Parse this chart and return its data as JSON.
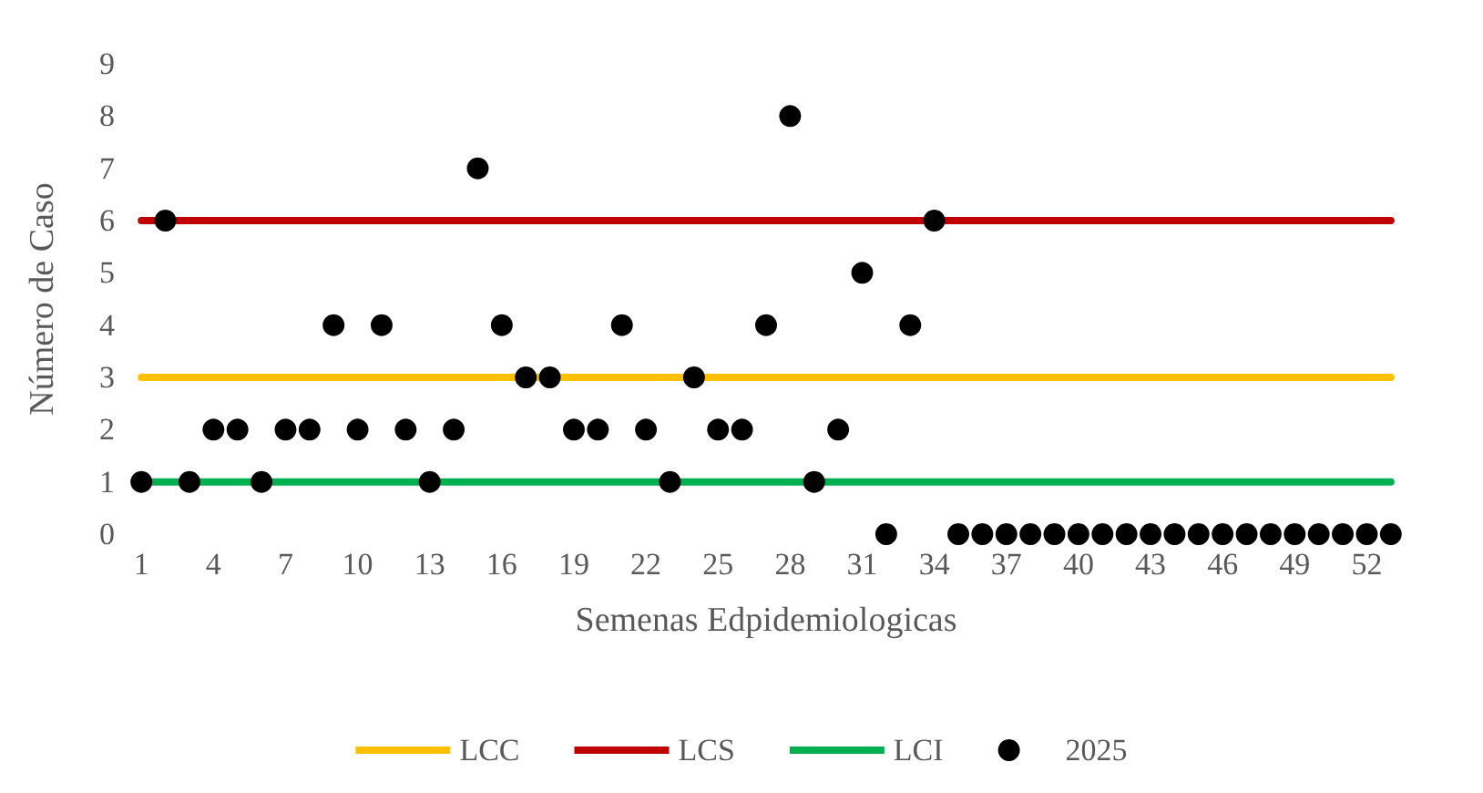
{
  "chart_data": {
    "type": "scatter",
    "xlabel": "Semenas Edpidemiologicas",
    "ylabel": "Número de Caso",
    "categories": [
      "1",
      null,
      null,
      "4",
      null,
      null,
      "7",
      null,
      null,
      "10",
      null,
      null,
      "13",
      null,
      null,
      "16",
      null,
      null,
      "19",
      null,
      null,
      "22",
      null,
      null,
      "25",
      null,
      null,
      "28",
      null,
      null,
      "31",
      null,
      null,
      "34",
      null,
      null,
      "37",
      null,
      null,
      "40",
      null,
      null,
      "43",
      null,
      null,
      "46",
      null,
      null,
      "49",
      null,
      null,
      "52",
      null
    ],
    "series": [
      {
        "name": "LCC",
        "type": "line",
        "marker": "none",
        "color": "#ffc000",
        "values": [
          3,
          3,
          3,
          3,
          3,
          3,
          3,
          3,
          3,
          3,
          3,
          3,
          3,
          3,
          3,
          3,
          3,
          3,
          3,
          3,
          3,
          3,
          3,
          3,
          3,
          3,
          3,
          3,
          3,
          3,
          3,
          3,
          3,
          3,
          3,
          3,
          3,
          3,
          3,
          3,
          3,
          3,
          3,
          3,
          3,
          3,
          3,
          3,
          3,
          3,
          3,
          3,
          3
        ]
      },
      {
        "name": "LCS",
        "type": "line",
        "marker": "none",
        "color": "#c00000",
        "values": [
          6,
          6,
          6,
          6,
          6,
          6,
          6,
          6,
          6,
          6,
          6,
          6,
          6,
          6,
          6,
          6,
          6,
          6,
          6,
          6,
          6,
          6,
          6,
          6,
          6,
          6,
          6,
          6,
          6,
          6,
          6,
          6,
          6,
          6,
          6,
          6,
          6,
          6,
          6,
          6,
          6,
          6,
          6,
          6,
          6,
          6,
          6,
          6,
          6,
          6,
          6,
          6,
          6
        ]
      },
      {
        "name": "LCI",
        "type": "line",
        "marker": "none",
        "color": "#00b050",
        "values": [
          1,
          1,
          1,
          1,
          1,
          1,
          1,
          1,
          1,
          1,
          1,
          1,
          1,
          1,
          1,
          1,
          1,
          1,
          1,
          1,
          1,
          1,
          1,
          1,
          1,
          1,
          1,
          1,
          1,
          1,
          1,
          1,
          1,
          1,
          1,
          1,
          1,
          1,
          1,
          1,
          1,
          1,
          1,
          1,
          1,
          1,
          1,
          1,
          1,
          1,
          1,
          1,
          1
        ]
      },
      {
        "name": "2025",
        "color": "#000000",
        "values": [
          1,
          6,
          1,
          2,
          2,
          1,
          2,
          2,
          4,
          2,
          4,
          2,
          1,
          2,
          7,
          4,
          3,
          3,
          2,
          2,
          4,
          2,
          1,
          3,
          2,
          2,
          4,
          8,
          1,
          2,
          5,
          0,
          4,
          6,
          0,
          0,
          0,
          0,
          0,
          0,
          0,
          0,
          0,
          0,
          0,
          0,
          0,
          0,
          0,
          0,
          0,
          0,
          0
        ]
      }
    ],
    "ylim": [
      0,
      9
    ],
    "yticks": [
      0,
      1,
      2,
      3,
      4,
      5,
      6,
      7,
      8,
      9
    ],
    "grid": false,
    "legend": "bottom",
    "marker": "circle",
    "line_style": "solid"
  }
}
